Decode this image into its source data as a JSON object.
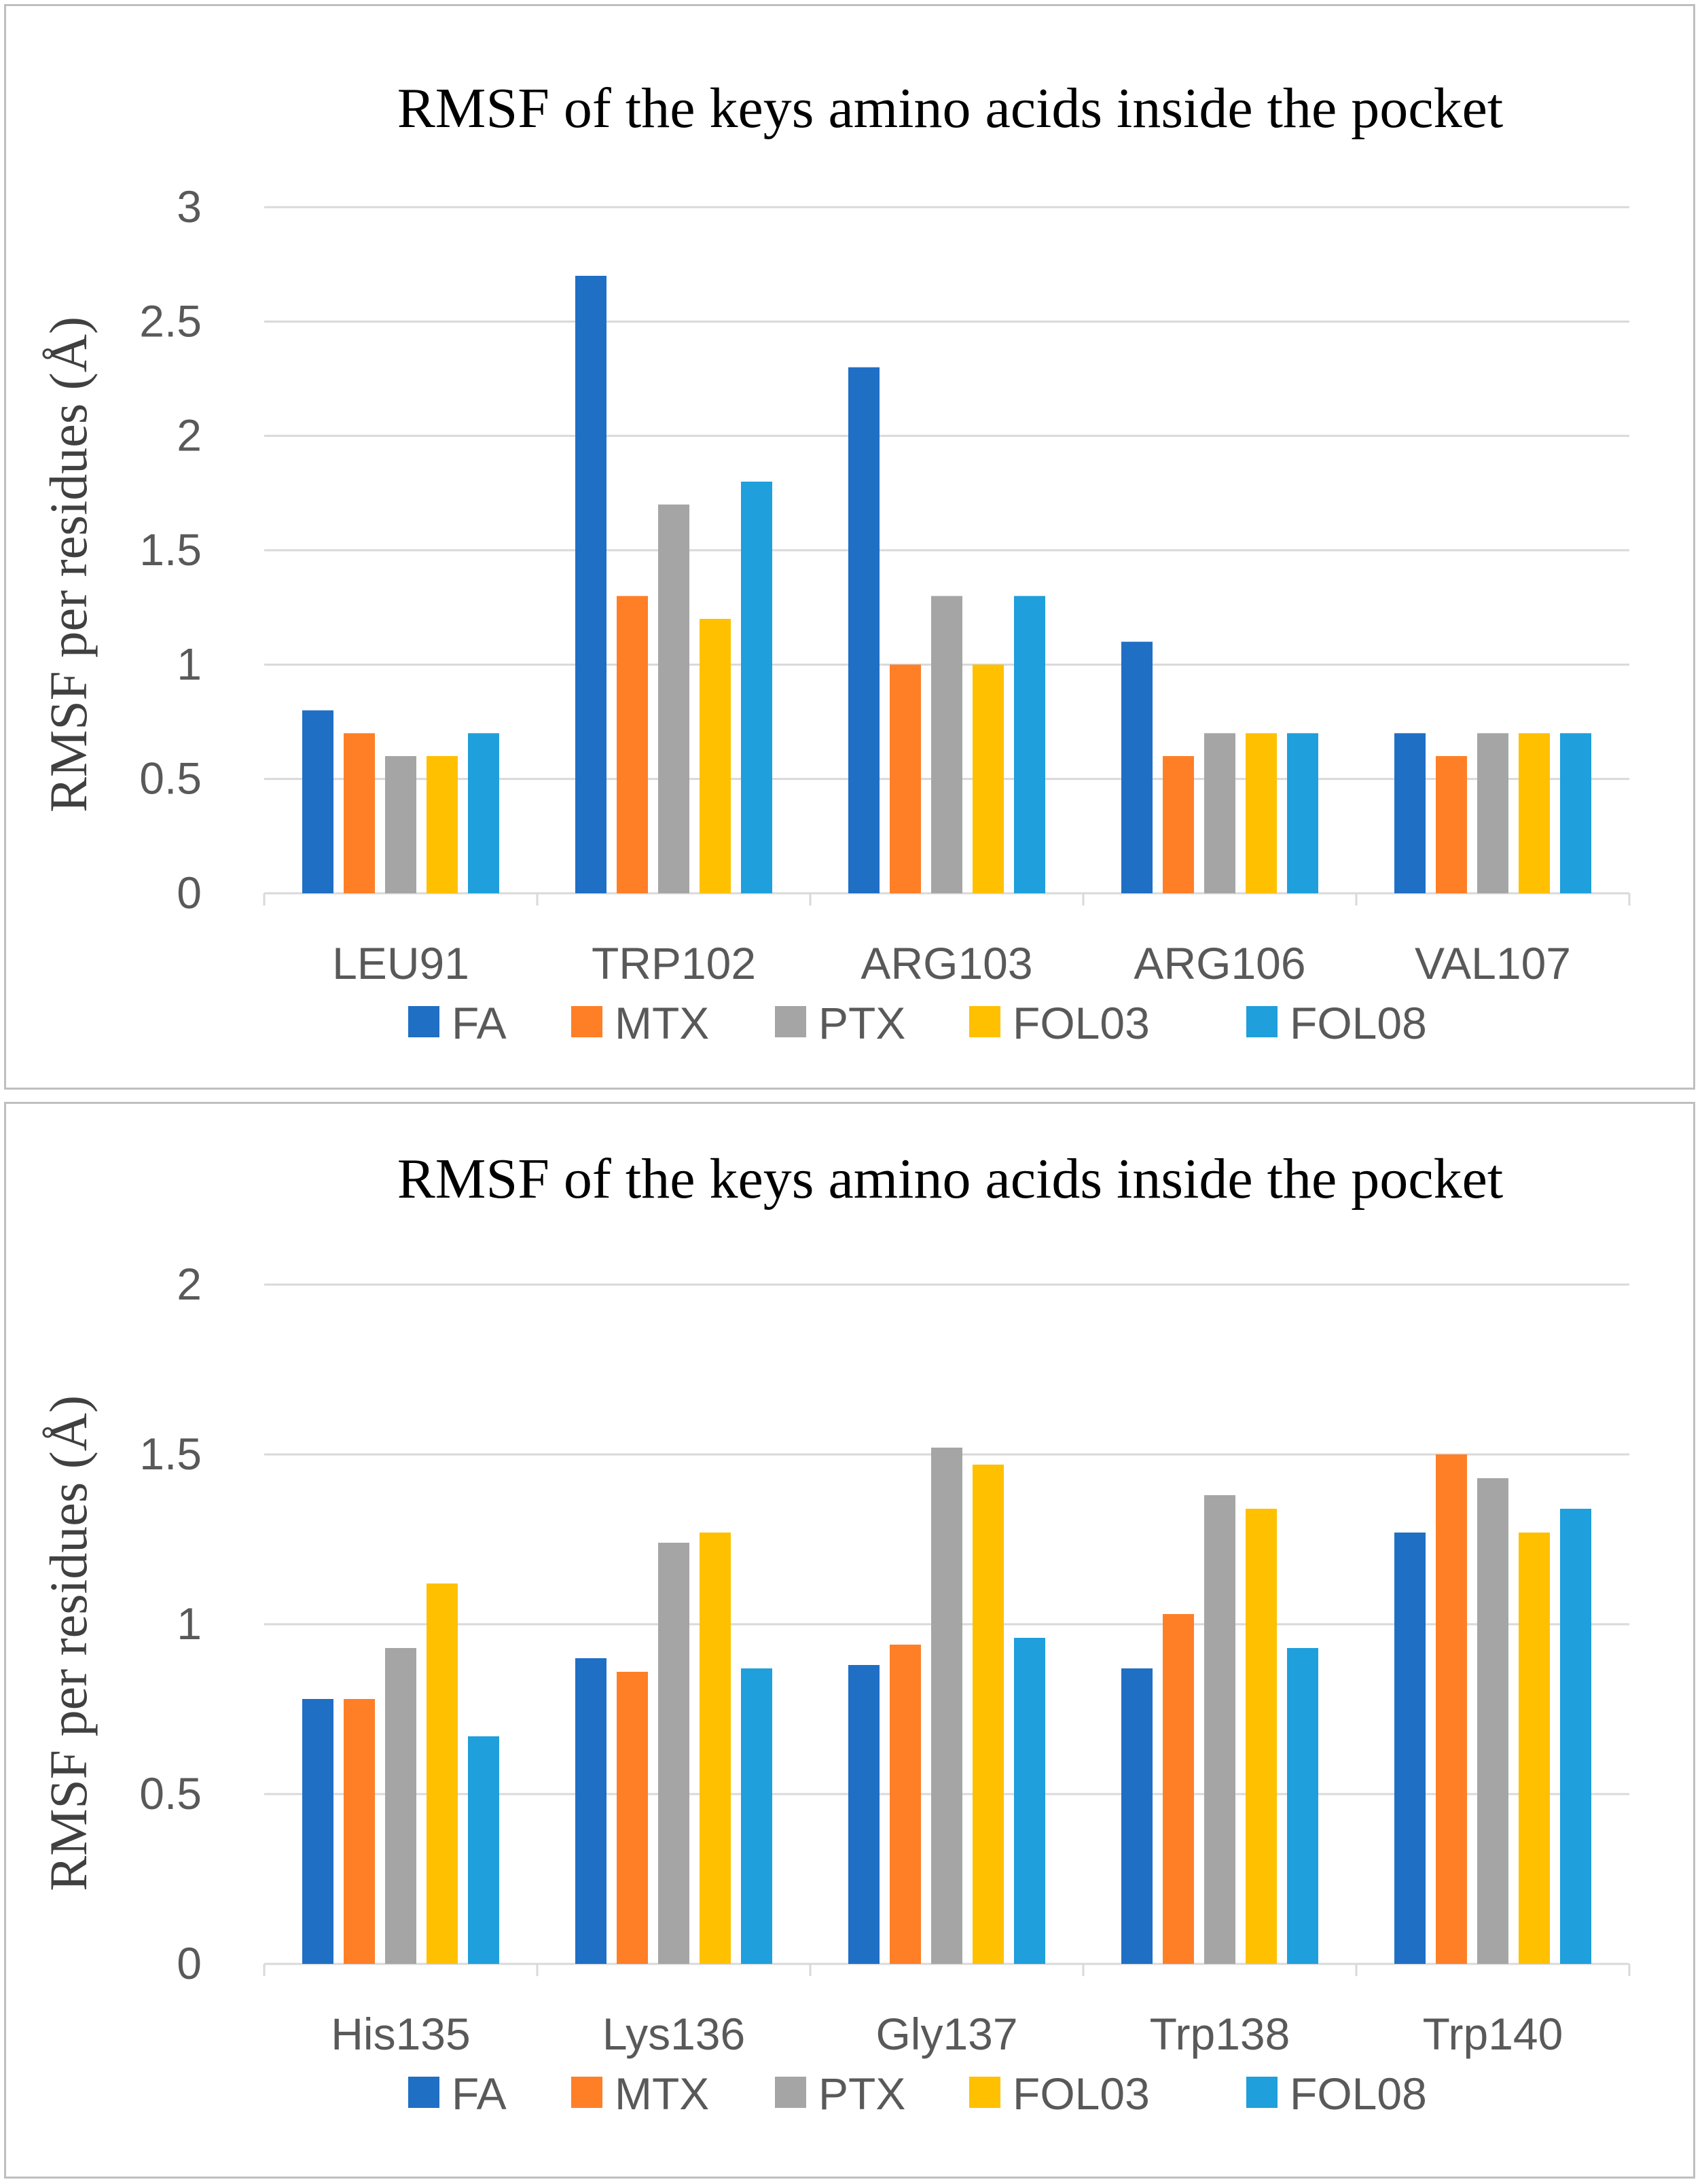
{
  "chart_data": [
    {
      "type": "bar",
      "title": "RMSF of the keys amino acids inside the pocket",
      "xlabel": "",
      "ylabel": "RMSF per residues (Å)",
      "ylim": [
        0,
        3
      ],
      "yticks": [
        "0",
        "0.5",
        "1",
        "1.5",
        "2",
        "2.5",
        "3"
      ],
      "grid": true,
      "legend_position": "bottom",
      "categories": [
        "LEU91",
        "TRP102",
        "ARG103",
        "ARG106",
        "VAL107"
      ],
      "series": [
        {
          "name": "FA",
          "color": "#1f6fc5",
          "values": [
            0.8,
            2.7,
            2.3,
            1.1,
            0.7
          ]
        },
        {
          "name": "MTX",
          "color": "#ff7f27",
          "values": [
            0.7,
            1.3,
            1.0,
            0.6,
            0.6
          ]
        },
        {
          "name": "PTX",
          "color": "#a5a5a5",
          "values": [
            0.6,
            1.7,
            1.3,
            0.7,
            0.7
          ]
        },
        {
          "name": "FOL03",
          "color": "#ffc000",
          "values": [
            0.6,
            1.2,
            1.0,
            0.7,
            0.7
          ]
        },
        {
          "name": "FOL08",
          "color": "#1f9fdc",
          "values": [
            0.7,
            1.8,
            1.3,
            0.7,
            0.7
          ]
        }
      ]
    },
    {
      "type": "bar",
      "title": "RMSF of the keys amino acids inside the pocket",
      "xlabel": "",
      "ylabel": "RMSF per residues (Å)",
      "ylim": [
        0,
        2
      ],
      "yticks": [
        "0",
        "0.5",
        "1",
        "1.5",
        "2"
      ],
      "grid": true,
      "legend_position": "bottom",
      "categories": [
        "His135",
        "Lys136",
        "Gly137",
        "Trp138",
        "Trp140"
      ],
      "series": [
        {
          "name": "FA",
          "color": "#1f6fc5",
          "values": [
            0.78,
            0.9,
            0.88,
            0.87,
            1.27
          ]
        },
        {
          "name": "MTX",
          "color": "#ff7f27",
          "values": [
            0.78,
            0.86,
            0.94,
            1.03,
            1.5
          ]
        },
        {
          "name": "PTX",
          "color": "#a5a5a5",
          "values": [
            0.93,
            1.24,
            1.52,
            1.38,
            1.43
          ]
        },
        {
          "name": "FOL03",
          "color": "#ffc000",
          "values": [
            1.12,
            1.27,
            1.47,
            1.34,
            1.27
          ]
        },
        {
          "name": "FOL08",
          "color": "#1f9fdc",
          "values": [
            0.67,
            0.87,
            0.96,
            0.93,
            1.34
          ]
        }
      ]
    }
  ]
}
